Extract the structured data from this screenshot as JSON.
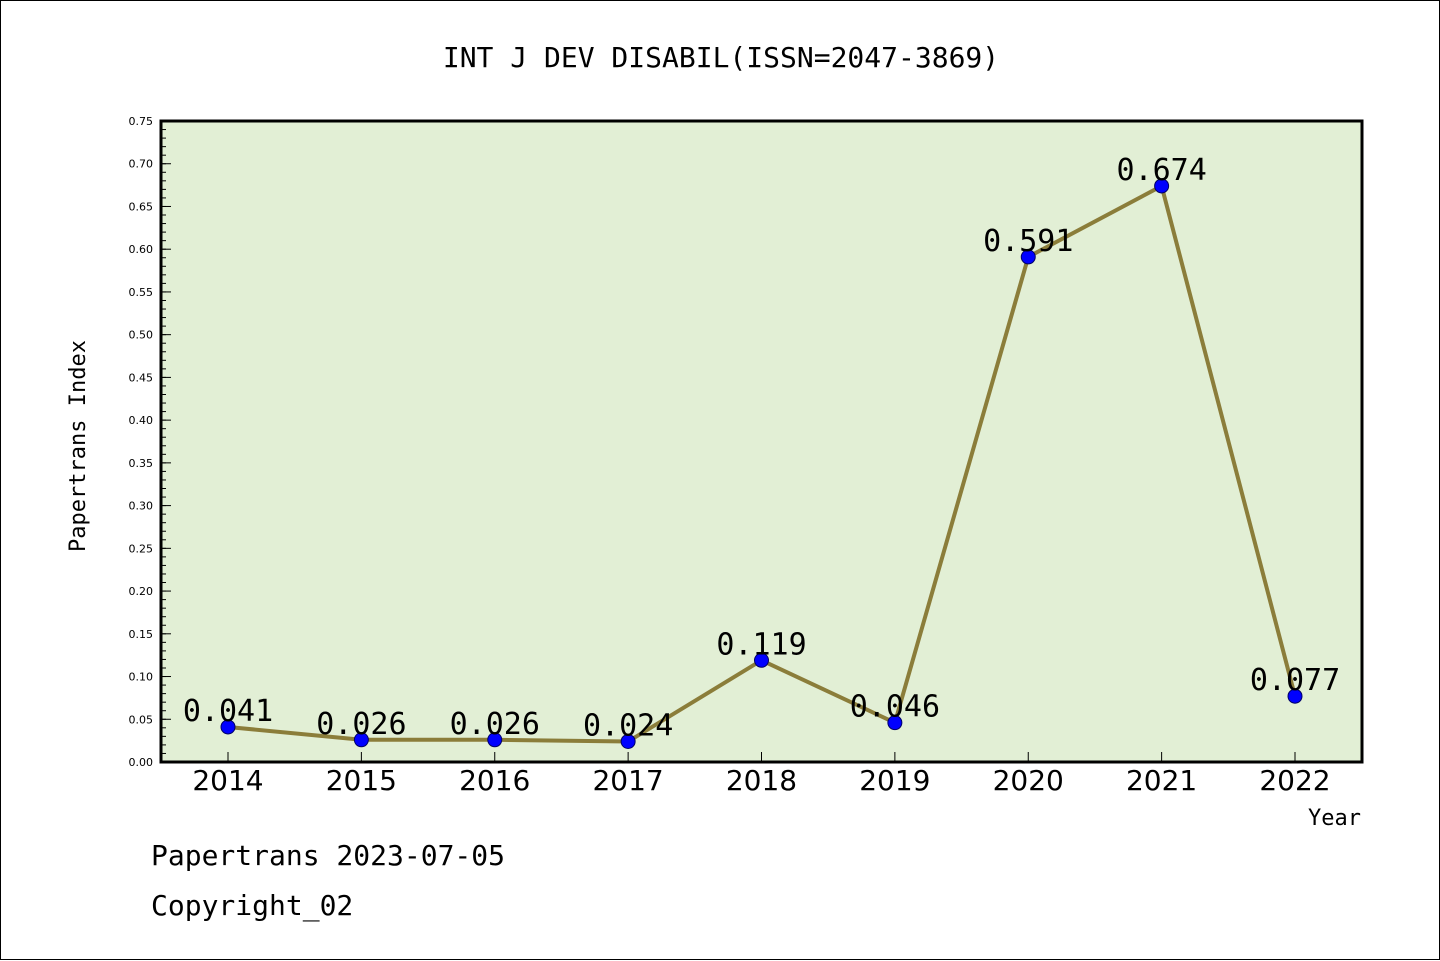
{
  "chart_data": {
    "type": "line",
    "title": "INT J DEV DISABIL(ISSN=2047-3869)",
    "xlabel": "Year",
    "ylabel": "Papertrans Index",
    "categories": [
      "2014",
      "2015",
      "2016",
      "2017",
      "2018",
      "2019",
      "2020",
      "2021",
      "2022"
    ],
    "values": [
      0.041,
      0.026,
      0.026,
      0.024,
      0.119,
      0.046,
      0.591,
      0.674,
      0.077
    ],
    "data_labels": [
      "0.041",
      "0.026",
      "0.026",
      "0.024",
      "0.119",
      "0.046",
      "0.591",
      "0.674",
      "0.077"
    ],
    "ylim": [
      0,
      0.75
    ],
    "yticks": [
      "0.00",
      "0.05",
      "0.10",
      "0.15",
      "0.20",
      "0.25",
      "0.30",
      "0.35",
      "0.40",
      "0.45",
      "0.50",
      "0.55",
      "0.60",
      "0.65",
      "0.70",
      "0.75"
    ],
    "grid": false,
    "legend": "none",
    "colors": {
      "plot_background": "#e2efd5",
      "line": "#8b7d3a",
      "marker": "#0000ff"
    }
  },
  "footer": {
    "line1": "Papertrans 2023-07-05",
    "line2": "Copyright_02"
  }
}
